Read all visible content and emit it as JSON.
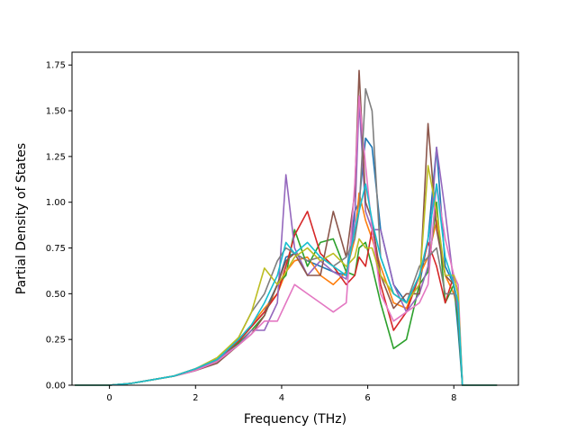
{
  "chart_data": {
    "type": "line",
    "title": "",
    "xlabel": "Frequency (THz)",
    "ylabel": "Partial Density of States",
    "xlim": [
      -0.87,
      9.5
    ],
    "ylim": [
      0.0,
      1.82
    ],
    "x_ticks": [
      0,
      2,
      4,
      6,
      8
    ],
    "x_tick_labels": [
      "0",
      "2",
      "4",
      "6",
      "8"
    ],
    "y_ticks": [
      0.0,
      0.25,
      0.5,
      0.75,
      1.0,
      1.25,
      1.5,
      1.75
    ],
    "y_tick_labels": [
      "0.00",
      "0.25",
      "0.50",
      "0.75",
      "1.00",
      "1.25",
      "1.50",
      "1.75"
    ],
    "grid": false,
    "legend": "none",
    "series": [
      {
        "color": "#1f77b4",
        "x": [
          -0.8,
          0,
          0.5,
          1,
          1.5,
          2,
          2.5,
          3,
          3.3,
          3.6,
          3.9,
          4.1,
          4.3,
          4.6,
          4.9,
          5.2,
          5.5,
          5.7,
          5.8,
          5.95,
          6.1,
          6.3,
          6.6,
          6.9,
          7.2,
          7.4,
          7.6,
          7.8,
          8,
          8.1,
          8.2,
          9
        ],
        "y": [
          0,
          0,
          0.01,
          0.03,
          0.05,
          0.09,
          0.14,
          0.24,
          0.32,
          0.4,
          0.55,
          0.7,
          0.72,
          0.68,
          0.65,
          0.62,
          0.6,
          0.95,
          1.0,
          1.35,
          1.3,
          0.85,
          0.55,
          0.45,
          0.55,
          0.8,
          1.3,
          0.65,
          0.55,
          0.3,
          0,
          0
        ]
      },
      {
        "color": "#ff7f0e",
        "x": [
          -0.8,
          0,
          0.5,
          1,
          1.5,
          2,
          2.5,
          3,
          3.3,
          3.6,
          3.9,
          4.1,
          4.3,
          4.6,
          4.9,
          5.2,
          5.5,
          5.7,
          5.8,
          5.95,
          6.1,
          6.3,
          6.6,
          6.9,
          7.2,
          7.4,
          7.6,
          7.8,
          8,
          8.1,
          8.2,
          9
        ],
        "y": [
          0,
          0,
          0.01,
          0.03,
          0.05,
          0.09,
          0.13,
          0.25,
          0.33,
          0.42,
          0.5,
          0.62,
          0.68,
          0.7,
          0.6,
          0.55,
          0.62,
          0.8,
          1.05,
          0.9,
          0.8,
          0.65,
          0.45,
          0.42,
          0.6,
          0.7,
          0.9,
          0.6,
          0.5,
          0.4,
          0,
          0
        ]
      },
      {
        "color": "#2ca02c",
        "x": [
          -0.8,
          0,
          0.5,
          1,
          1.5,
          2,
          2.5,
          3,
          3.3,
          3.6,
          3.9,
          4.1,
          4.3,
          4.6,
          4.9,
          5.2,
          5.5,
          5.7,
          5.8,
          5.95,
          6.1,
          6.3,
          6.6,
          6.9,
          7.2,
          7.4,
          7.6,
          7.8,
          8,
          8.1,
          8.2,
          9
        ],
        "y": [
          0,
          0,
          0.01,
          0.03,
          0.05,
          0.08,
          0.13,
          0.23,
          0.3,
          0.38,
          0.55,
          0.6,
          0.85,
          0.65,
          0.78,
          0.8,
          0.62,
          0.6,
          0.75,
          0.78,
          0.65,
          0.45,
          0.2,
          0.25,
          0.55,
          0.62,
          1.0,
          0.45,
          0.55,
          0.35,
          0,
          0
        ]
      },
      {
        "color": "#d62728",
        "x": [
          -0.8,
          0,
          0.5,
          1,
          1.5,
          2,
          2.5,
          3,
          3.3,
          3.6,
          3.9,
          4.1,
          4.3,
          4.6,
          4.9,
          5.2,
          5.5,
          5.7,
          5.8,
          5.95,
          6.1,
          6.3,
          6.6,
          6.9,
          7.2,
          7.4,
          7.6,
          7.8,
          8,
          8.1,
          8.2,
          9
        ],
        "y": [
          0,
          0,
          0.01,
          0.03,
          0.05,
          0.09,
          0.14,
          0.24,
          0.32,
          0.4,
          0.5,
          0.65,
          0.82,
          0.95,
          0.72,
          0.65,
          0.55,
          0.6,
          0.7,
          0.65,
          0.85,
          0.55,
          0.3,
          0.4,
          0.6,
          0.78,
          0.65,
          0.45,
          0.6,
          0.5,
          0,
          0
        ]
      },
      {
        "color": "#9467bd",
        "x": [
          -0.8,
          0,
          0.5,
          1,
          1.5,
          2,
          2.5,
          3,
          3.3,
          3.6,
          3.9,
          4.1,
          4.3,
          4.6,
          4.9,
          5.2,
          5.5,
          5.7,
          5.8,
          5.95,
          6.1,
          6.3,
          6.6,
          6.9,
          7.2,
          7.4,
          7.6,
          7.8,
          8,
          8.1,
          8.2,
          9
        ],
        "y": [
          0,
          0,
          0.01,
          0.03,
          0.05,
          0.08,
          0.14,
          0.22,
          0.3,
          0.3,
          0.45,
          1.15,
          0.75,
          0.6,
          0.68,
          0.62,
          0.58,
          0.9,
          1.55,
          0.95,
          0.85,
          0.85,
          0.55,
          0.4,
          0.5,
          0.65,
          1.3,
          0.95,
          0.55,
          0.4,
          0,
          0
        ]
      },
      {
        "color": "#8c564b",
        "x": [
          -0.8,
          0,
          0.5,
          1,
          1.5,
          2,
          2.5,
          3,
          3.3,
          3.6,
          3.9,
          4.1,
          4.3,
          4.6,
          4.9,
          5.2,
          5.5,
          5.7,
          5.8,
          5.95,
          6.1,
          6.3,
          6.6,
          6.9,
          7.2,
          7.4,
          7.6,
          7.8,
          8,
          8.1,
          8.2,
          9
        ],
        "y": [
          0,
          0,
          0.01,
          0.03,
          0.05,
          0.08,
          0.12,
          0.22,
          0.28,
          0.38,
          0.55,
          0.68,
          0.72,
          0.6,
          0.6,
          0.95,
          0.7,
          1.05,
          1.72,
          1.0,
          0.9,
          0.6,
          0.42,
          0.5,
          0.5,
          1.43,
          0.85,
          0.6,
          0.55,
          0.45,
          0,
          0
        ]
      },
      {
        "color": "#e377c2",
        "x": [
          -0.8,
          0,
          0.5,
          1,
          1.5,
          2,
          2.5,
          3,
          3.3,
          3.6,
          3.9,
          4.1,
          4.3,
          4.6,
          4.9,
          5.2,
          5.5,
          5.7,
          5.8,
          5.95,
          6.1,
          6.3,
          6.6,
          6.9,
          7.2,
          7.4,
          7.6,
          7.8,
          8,
          8.1,
          8.2,
          9
        ],
        "y": [
          0,
          0,
          0.01,
          0.03,
          0.05,
          0.08,
          0.13,
          0.22,
          0.28,
          0.35,
          0.35,
          0.45,
          0.55,
          0.5,
          0.45,
          0.4,
          0.45,
          1.1,
          1.58,
          1.2,
          0.85,
          0.5,
          0.35,
          0.4,
          0.45,
          0.55,
          1.1,
          0.8,
          0.6,
          0.55,
          0,
          0
        ]
      },
      {
        "color": "#7f7f7f",
        "x": [
          -0.8,
          0,
          0.5,
          1,
          1.5,
          2,
          2.5,
          3,
          3.3,
          3.6,
          3.9,
          4.1,
          4.3,
          4.6,
          4.9,
          5.2,
          5.5,
          5.7,
          5.8,
          5.95,
          6.1,
          6.3,
          6.6,
          6.9,
          7.2,
          7.4,
          7.6,
          7.8,
          8,
          8.1,
          8.2,
          9
        ],
        "y": [
          0,
          0,
          0.01,
          0.03,
          0.05,
          0.09,
          0.14,
          0.26,
          0.4,
          0.5,
          0.68,
          0.75,
          0.72,
          0.68,
          0.7,
          0.65,
          0.7,
          0.8,
          0.95,
          1.62,
          1.5,
          0.7,
          0.5,
          0.45,
          0.65,
          0.7,
          0.75,
          0.5,
          0.5,
          0.45,
          0,
          0
        ]
      },
      {
        "color": "#bcbd22",
        "x": [
          -0.8,
          0,
          0.5,
          1,
          1.5,
          2,
          2.5,
          3,
          3.3,
          3.6,
          3.9,
          4.1,
          4.3,
          4.6,
          4.9,
          5.2,
          5.5,
          5.7,
          5.8,
          5.95,
          6.1,
          6.3,
          6.6,
          6.9,
          7.2,
          7.4,
          7.6,
          7.8,
          8,
          8.1,
          8.2,
          9
        ],
        "y": [
          0,
          0,
          0.01,
          0.03,
          0.05,
          0.09,
          0.15,
          0.26,
          0.4,
          0.64,
          0.55,
          0.62,
          0.7,
          0.75,
          0.68,
          0.72,
          0.65,
          0.7,
          0.8,
          0.75,
          0.75,
          0.6,
          0.5,
          0.45,
          0.55,
          1.2,
          0.95,
          0.6,
          0.6,
          0.5,
          0,
          0
        ]
      },
      {
        "color": "#17becf",
        "x": [
          -0.8,
          0,
          0.5,
          1,
          1.5,
          2,
          2.5,
          3,
          3.3,
          3.6,
          3.9,
          4.1,
          4.3,
          4.6,
          4.9,
          5.2,
          5.5,
          5.7,
          5.8,
          5.95,
          6.1,
          6.3,
          6.6,
          6.9,
          7.2,
          7.4,
          7.6,
          7.8,
          8,
          8.1,
          8.2,
          9
        ],
        "y": [
          0,
          0,
          0.01,
          0.03,
          0.05,
          0.09,
          0.14,
          0.25,
          0.33,
          0.45,
          0.6,
          0.78,
          0.72,
          0.78,
          0.7,
          0.65,
          0.6,
          0.85,
          0.95,
          1.1,
          0.9,
          0.7,
          0.5,
          0.45,
          0.6,
          0.8,
          1.1,
          0.7,
          0.55,
          0.45,
          0,
          0
        ]
      }
    ]
  }
}
